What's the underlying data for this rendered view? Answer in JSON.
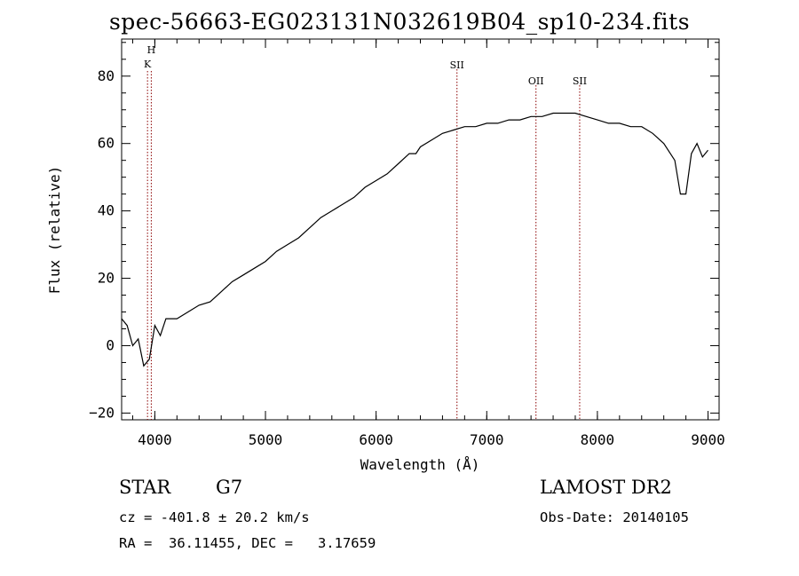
{
  "header": {
    "title": "spec-56663-EG023131N032619B04_sp10-234.fits"
  },
  "info": {
    "object_class": "STAR",
    "subclass": "G7",
    "survey": "LAMOST DR2",
    "redshift": "cz = -401.8 ± 20.2 km/s",
    "obs_date": "Obs-Date: 20140105",
    "coords": "RA =  36.11455, DEC =   3.17659"
  },
  "chart_data": {
    "type": "line",
    "title": "spec-56663-EG023131N032619B04_sp10-234.fits",
    "xlabel": "Wavelength (Å)",
    "ylabel": "Flux (relative)",
    "xlim": [
      3700,
      9100
    ],
    "ylim": [
      -22,
      91
    ],
    "xticks": [
      4000,
      5000,
      6000,
      7000,
      8000,
      9000
    ],
    "yticks": [
      -20,
      0,
      20,
      40,
      60,
      80
    ],
    "grid": false,
    "line_color": "#000000",
    "marker_color": "#8b0000",
    "spectral_lines": [
      {
        "label": "H",
        "wavelength": 3968
      },
      {
        "label": "K",
        "wavelength": 3934
      },
      {
        "label": "SII",
        "wavelength": 6731
      },
      {
        "label": "OII",
        "wavelength": 7445
      },
      {
        "label": "SII",
        "wavelength": 7840
      }
    ],
    "series": [
      {
        "x": [
          3700,
          3750,
          3800,
          3850,
          3900,
          3950,
          4000,
          4050,
          4100,
          4200,
          4300,
          4400,
          4500,
          4600,
          4700,
          4800,
          4900,
          5000,
          5100,
          5200,
          5300,
          5400,
          5500,
          5600,
          5700,
          5800,
          5900,
          6000,
          6100,
          6200,
          6300,
          6360,
          6400,
          6500,
          6600,
          6700,
          6800,
          6900,
          7000,
          7100,
          7200,
          7300,
          7400,
          7500,
          7600,
          7700,
          7800,
          7900,
          8000,
          8100,
          8200,
          8300,
          8400,
          8500,
          8600,
          8700,
          8750,
          8800,
          8850,
          8900,
          8950,
          9000
        ],
        "y": [
          8,
          6,
          0,
          2,
          -6,
          -4,
          6,
          3,
          8,
          8,
          10,
          12,
          13,
          16,
          19,
          21,
          23,
          25,
          28,
          30,
          32,
          35,
          38,
          40,
          42,
          44,
          47,
          49,
          51,
          54,
          57,
          57,
          59,
          61,
          63,
          64,
          65,
          65,
          66,
          66,
          67,
          67,
          68,
          68,
          69,
          69,
          69,
          68,
          67,
          66,
          66,
          65,
          65,
          63,
          60,
          55,
          45,
          45,
          57,
          60,
          56,
          58
        ]
      }
    ]
  }
}
